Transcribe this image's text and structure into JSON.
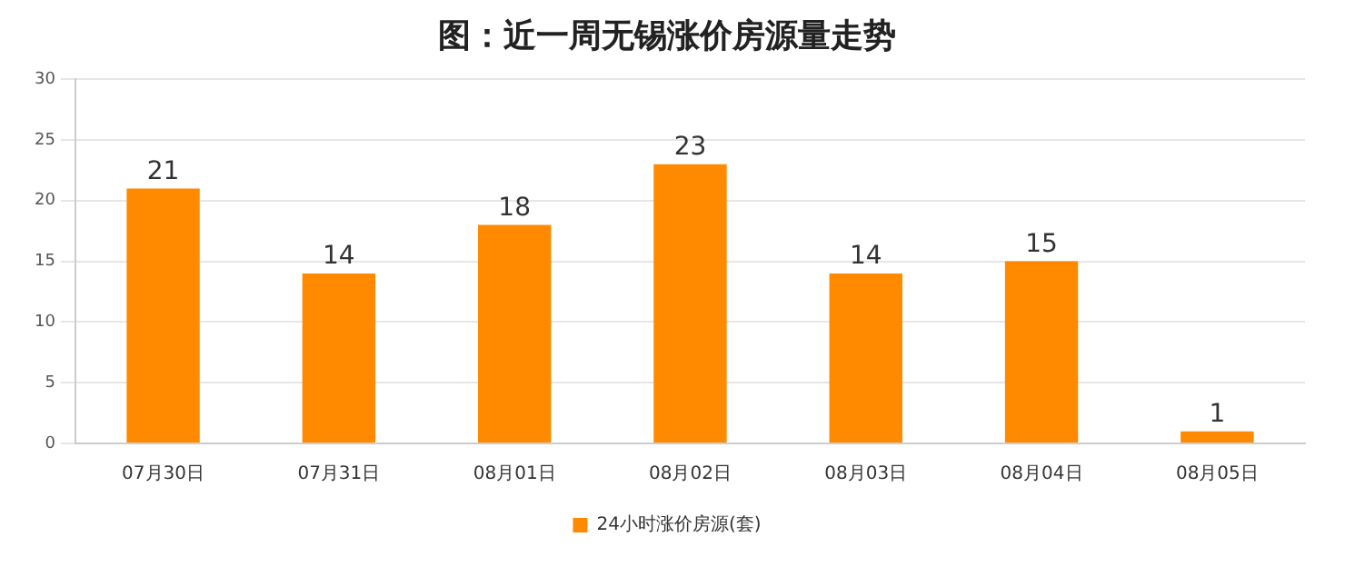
{
  "chart_data": {
    "type": "bar",
    "title": "图：近一周无锡涨价房源量走势",
    "categories": [
      "07月30日",
      "07月31日",
      "08月01日",
      "08月02日",
      "08月03日",
      "08月04日",
      "08月05日"
    ],
    "series": [
      {
        "name": "24小时涨价房源(套)",
        "color": "#ff8a00",
        "values": [
          21,
          14,
          18,
          23,
          14,
          15,
          1
        ]
      }
    ],
    "ylim": [
      0,
      30
    ],
    "yticks": [
      0,
      5,
      10,
      15,
      20,
      25,
      30
    ],
    "grid": "y",
    "legend": "bottom",
    "data_labels": true
  }
}
